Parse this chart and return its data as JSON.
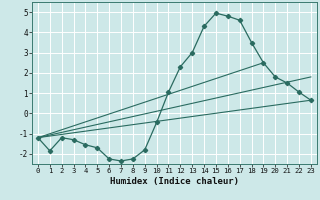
{
  "xlabel": "Humidex (Indice chaleur)",
  "xlim": [
    -0.5,
    23.5
  ],
  "ylim": [
    -2.5,
    5.5
  ],
  "xticks": [
    0,
    1,
    2,
    3,
    4,
    5,
    6,
    7,
    8,
    9,
    10,
    11,
    12,
    13,
    14,
    15,
    16,
    17,
    18,
    19,
    20,
    21,
    22,
    23
  ],
  "yticks": [
    -2,
    -1,
    0,
    1,
    2,
    3,
    4,
    5
  ],
  "bg_color": "#cde8e8",
  "grid_color": "#ffffff",
  "line_color": "#2a6b60",
  "curve_x": [
    0,
    1,
    2,
    3,
    4,
    5,
    6,
    7,
    8,
    9,
    10,
    11,
    12,
    13,
    14,
    15,
    16,
    17,
    18,
    19,
    20,
    21,
    22,
    23
  ],
  "curve_y": [
    -1.2,
    -1.85,
    -1.2,
    -1.3,
    -1.55,
    -1.7,
    -2.25,
    -2.35,
    -2.25,
    -1.8,
    -0.45,
    1.05,
    2.3,
    3.0,
    4.3,
    4.95,
    4.8,
    4.6,
    3.5,
    2.5,
    1.8,
    1.5,
    1.05,
    0.65
  ],
  "line1_x": [
    0,
    23
  ],
  "line1_y": [
    -1.2,
    0.65
  ],
  "line2_x": [
    0,
    23
  ],
  "line2_y": [
    -1.2,
    1.8
  ],
  "line3_x": [
    0,
    19
  ],
  "line3_y": [
    -1.2,
    2.5
  ]
}
